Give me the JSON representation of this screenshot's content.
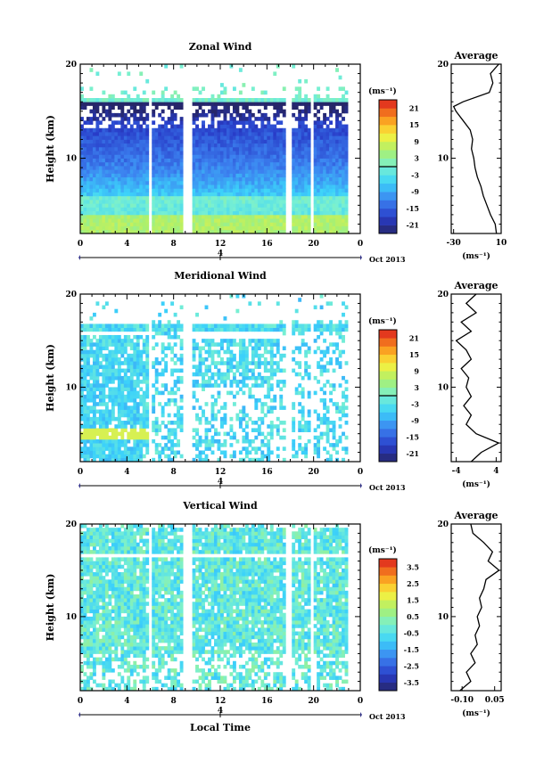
{
  "chart_data": [
    {
      "type": "heatmap",
      "title": "Zonal Wind",
      "ylabel": "Height (km)",
      "y_ticks": [
        "20",
        "10"
      ],
      "ylim": [
        2,
        20
      ],
      "x_ticks": [
        "0",
        "4",
        "8",
        "12",
        "16",
        "20",
        "0"
      ],
      "xlim": [
        0,
        24
      ],
      "date_marker": "4",
      "date_label": "Oct 2013",
      "colorbar": {
        "unit": "(ms⁻¹)",
        "ticks": [
          "21",
          "15",
          "9",
          "3",
          "-3",
          "-9",
          "-15",
          "-21"
        ],
        "range": [
          -24,
          24
        ],
        "zero_line": 0
      },
      "gaps_hours": [
        [
          5.8,
          6.2
        ],
        [
          8.8,
          9.6
        ],
        [
          17.6,
          18.0
        ],
        [
          19.6,
          20.0
        ]
      ],
      "profile": {
        "title": "Average",
        "xlabel": "(ms⁻¹)",
        "x_ticks": [
          "-30",
          "10"
        ],
        "xlim": [
          -32,
          10
        ],
        "y_ticks": [
          "20",
          "10"
        ],
        "height_km": [
          2,
          3,
          4,
          5,
          6,
          7,
          8,
          9,
          10,
          11,
          12,
          13,
          14,
          15,
          15.5,
          16,
          17,
          18,
          19,
          20
        ],
        "wind": [
          6,
          5,
          1,
          -2,
          -5,
          -7,
          -10,
          -12,
          -13,
          -15,
          -14,
          -16,
          -22,
          -28,
          -30,
          -22,
          0,
          3,
          1,
          8
        ]
      }
    },
    {
      "type": "heatmap",
      "title": "Meridional Wind",
      "ylabel": "Height (km)",
      "y_ticks": [
        "20",
        "10"
      ],
      "ylim": [
        2,
        20
      ],
      "x_ticks": [
        "0",
        "4",
        "8",
        "12",
        "16",
        "20",
        "0"
      ],
      "xlim": [
        0,
        24
      ],
      "date_marker": "4",
      "date_label": "Oct 2013",
      "colorbar": {
        "unit": "(ms⁻¹)",
        "ticks": [
          "21",
          "15",
          "9",
          "3",
          "-3",
          "-9",
          "-15",
          "-21"
        ],
        "range": [
          -24,
          24
        ],
        "zero_line": 0
      },
      "gaps_hours": [
        [
          5.8,
          6.2
        ],
        [
          8.8,
          9.6
        ],
        [
          17.6,
          18.0
        ],
        [
          19.6,
          20.0
        ]
      ],
      "profile": {
        "title": "Average",
        "xlabel": "(ms⁻¹)",
        "x_ticks": [
          "-4",
          "4"
        ],
        "xlim": [
          -5,
          5
        ],
        "y_ticks": [
          "20",
          "10"
        ],
        "height_km": [
          2,
          3,
          4,
          5,
          6,
          7,
          8,
          9,
          10,
          11,
          12,
          13,
          14,
          15,
          16,
          17,
          18,
          19,
          20
        ],
        "wind": [
          -1,
          1,
          4.5,
          0,
          -2,
          -1,
          -2.5,
          -1,
          -2,
          -1.5,
          -3,
          -1,
          -2,
          -4,
          -1,
          -3,
          0,
          -2,
          0
        ]
      }
    },
    {
      "type": "heatmap",
      "title": "Vertical Wind",
      "ylabel": "Height (km)",
      "y_ticks": [
        "20",
        "10"
      ],
      "ylim": [
        2,
        20
      ],
      "x_ticks": [
        "0",
        "4",
        "8",
        "12",
        "16",
        "20",
        "0"
      ],
      "xlim": [
        0,
        24
      ],
      "date_marker": "4",
      "date_label": "Oct 2013",
      "xlabel": "Local Time",
      "colorbar": {
        "unit": "(ms⁻¹)",
        "ticks": [
          "3.5",
          "2.5",
          "1.5",
          "0.5",
          "-0.5",
          "-1.5",
          "-2.5",
          "-3.5"
        ],
        "range": [
          -4,
          4
        ]
      },
      "gaps_hours": [
        [
          5.8,
          6.2
        ],
        [
          8.8,
          9.6
        ],
        [
          17.6,
          18.0
        ],
        [
          19.6,
          20.0
        ]
      ],
      "profile": {
        "title": "Average",
        "xlabel": "(ms⁻¹)",
        "x_ticks": [
          "-0.10",
          "0.05"
        ],
        "xlim": [
          -0.15,
          0.08
        ],
        "y_ticks": [
          "20",
          "10"
        ],
        "height_km": [
          2,
          3,
          4,
          5,
          6,
          7,
          8,
          9,
          10,
          11,
          12,
          13,
          14,
          15,
          16,
          17,
          18,
          19,
          20
        ],
        "wind": [
          -0.11,
          -0.06,
          -0.08,
          -0.04,
          -0.06,
          -0.03,
          -0.04,
          -0.02,
          -0.03,
          -0.01,
          -0.02,
          0.0,
          0.01,
          0.07,
          0.02,
          0.04,
          0.0,
          -0.05,
          -0.06
        ]
      }
    }
  ]
}
